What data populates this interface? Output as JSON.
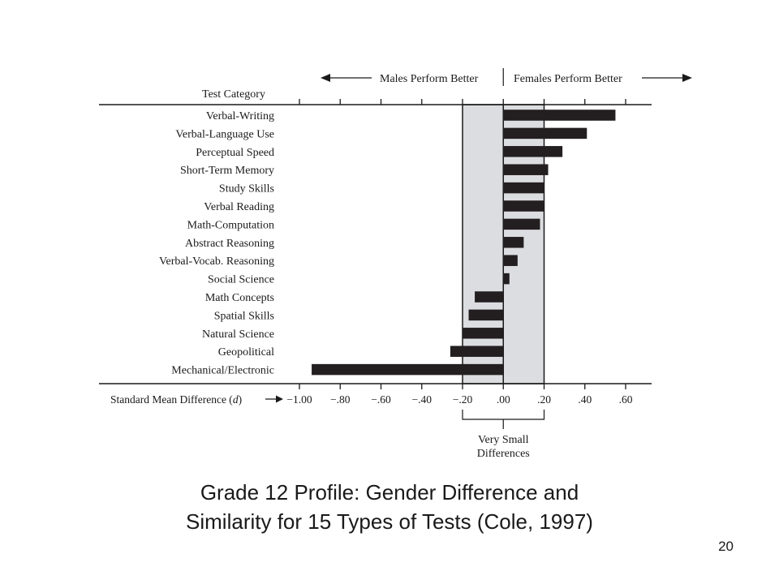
{
  "chart_data": {
    "type": "bar",
    "orientation": "horizontal",
    "category_header": "Test Category",
    "categories": [
      "Verbal-Writing",
      "Verbal-Language Use",
      "Perceptual Speed",
      "Short-Term Memory",
      "Study Skills",
      "Verbal Reading",
      "Math-Computation",
      "Abstract Reasoning",
      "Verbal-Vocab. Reasoning",
      "Social Science",
      "Math Concepts",
      "Spatial Skills",
      "Natural Science",
      "Geopolitical",
      "Mechanical/Electronic"
    ],
    "values": [
      0.55,
      0.41,
      0.29,
      0.22,
      0.2,
      0.2,
      0.18,
      0.1,
      0.07,
      0.03,
      -0.14,
      -0.17,
      -0.2,
      -0.26,
      -0.94
    ],
    "xlim": [
      -1.0,
      0.6
    ],
    "x_ticks": [
      -1.0,
      -0.8,
      -0.6,
      -0.4,
      -0.2,
      0.0,
      0.2,
      0.4,
      0.6
    ],
    "x_tick_labels": [
      "−1.00",
      "−.80",
      "−.60",
      "−.40",
      "−.20",
      ".00",
      ".20",
      ".40",
      ".60"
    ],
    "xlabel": "Standard Mean Difference (d)",
    "left_direction_label": "Males Perform Better",
    "right_direction_label": "Females Perform Better",
    "shaded_band": {
      "from": -0.2,
      "to": 0.2,
      "label_line1": "Very Small",
      "label_line2": "Differences"
    },
    "bar_color": "#231f20",
    "band_color": "#dcdde0"
  },
  "caption": {
    "line1": "Grade 12 Profile: Gender Difference and",
    "line2": "Similarity for 15 Types of Tests (Cole, 1997)"
  },
  "slide_number": "20"
}
